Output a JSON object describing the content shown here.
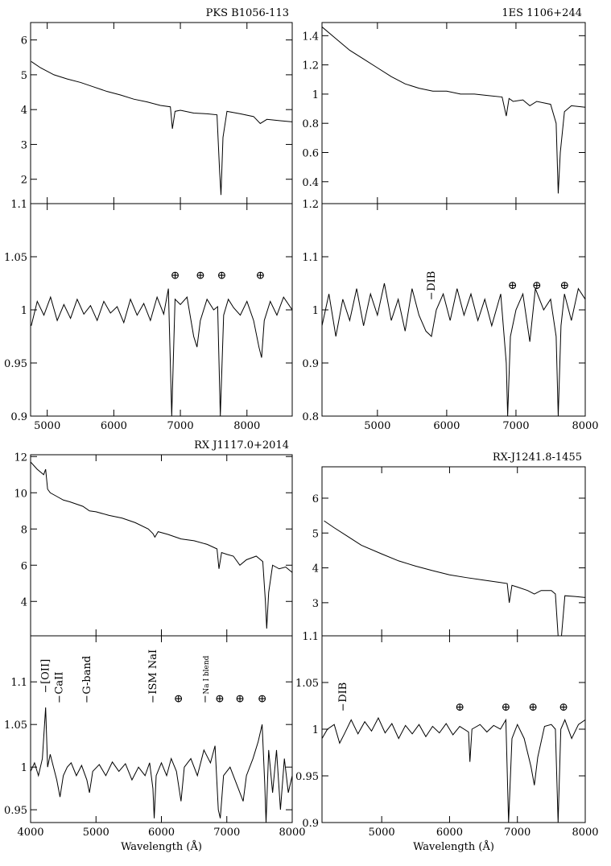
{
  "chart_data": [
    {
      "type": "line",
      "title": "PKS B1056-113",
      "color": "#000000",
      "x": [
        4760,
        4900,
        5100,
        5300,
        5500,
        5700,
        5900,
        6100,
        6300,
        6500,
        6700,
        6850,
        6880,
        6920,
        7000,
        7200,
        7400,
        7550,
        7590,
        7610,
        7640,
        7700,
        7900,
        8100,
        8200,
        8300,
        8500,
        8680
      ],
      "values": [
        5.38,
        5.2,
        5.0,
        4.88,
        4.78,
        4.65,
        4.52,
        4.42,
        4.3,
        4.22,
        4.12,
        4.08,
        3.45,
        3.95,
        3.98,
        3.9,
        3.88,
        3.85,
        2.2,
        1.55,
        3.2,
        3.95,
        3.88,
        3.8,
        3.6,
        3.72,
        3.68,
        3.65
      ],
      "xlim": [
        4750,
        8680
      ],
      "ylim": [
        1.3,
        6.5
      ],
      "xticks": [
        5000,
        6000,
        7000,
        8000
      ],
      "yticks": [
        2,
        3,
        4,
        5,
        6
      ]
    },
    {
      "type": "line",
      "color": "#000000",
      "x": [
        4760,
        4850,
        4950,
        5050,
        5150,
        5250,
        5350,
        5450,
        5550,
        5650,
        5750,
        5850,
        5950,
        6050,
        6150,
        6250,
        6350,
        6450,
        6550,
        6650,
        6750,
        6820,
        6870,
        6920,
        7000,
        7100,
        7200,
        7250,
        7300,
        7400,
        7500,
        7560,
        7600,
        7650,
        7720,
        7800,
        7900,
        8000,
        8100,
        8180,
        8220,
        8260,
        8350,
        8450,
        8550,
        8680
      ],
      "values": [
        0.985,
        1.008,
        0.995,
        1.012,
        0.99,
        1.005,
        0.992,
        1.01,
        0.996,
        1.004,
        0.99,
        1.008,
        0.997,
        1.003,
        0.988,
        1.01,
        0.995,
        1.006,
        0.99,
        1.012,
        0.996,
        1.02,
        0.9,
        1.01,
        1.005,
        1.012,
        0.975,
        0.965,
        0.99,
        1.01,
        1.0,
        1.003,
        0.9,
        0.995,
        1.01,
        1.002,
        0.995,
        1.008,
        0.99,
        0.965,
        0.955,
        0.99,
        1.008,
        0.995,
        1.012,
        1.0
      ],
      "xlim": [
        4750,
        8680
      ],
      "ylim": [
        0.9,
        1.1
      ],
      "xticks": [
        5000,
        6000,
        7000,
        8000
      ],
      "yticks": [
        0.9,
        0.95,
        1,
        1.05,
        1.1
      ],
      "annotations": [
        {
          "text": "⊕",
          "x": 6920,
          "y": 1.033
        },
        {
          "text": "⊕",
          "x": 7300,
          "y": 1.033
        },
        {
          "text": "⊕",
          "x": 7620,
          "y": 1.033
        },
        {
          "text": "⊕",
          "x": 8200,
          "y": 1.033
        }
      ]
    },
    {
      "type": "line",
      "title": "1ES 1106+244",
      "color": "#000000",
      "x": [
        4200,
        4400,
        4600,
        4800,
        5000,
        5200,
        5400,
        5600,
        5800,
        6000,
        6200,
        6400,
        6600,
        6800,
        6860,
        6900,
        6960,
        7100,
        7200,
        7300,
        7500,
        7580,
        7610,
        7640,
        7700,
        7800,
        8000
      ],
      "values": [
        1.46,
        1.38,
        1.3,
        1.24,
        1.18,
        1.12,
        1.07,
        1.04,
        1.02,
        1.02,
        1.0,
        1.0,
        0.99,
        0.98,
        0.85,
        0.97,
        0.95,
        0.96,
        0.92,
        0.95,
        0.93,
        0.8,
        0.32,
        0.6,
        0.88,
        0.92,
        0.91
      ],
      "xlim": [
        4200,
        8000
      ],
      "ylim": [
        0.25,
        1.49
      ],
      "xticks": [
        5000,
        6000,
        7000,
        8000
      ],
      "yticks": [
        0.4,
        0.6,
        0.8,
        1,
        1.2,
        1.4
      ]
    },
    {
      "type": "line",
      "color": "#000000",
      "x": [
        4200,
        4300,
        4400,
        4500,
        4600,
        4700,
        4800,
        4900,
        5000,
        5100,
        5200,
        5300,
        5400,
        5500,
        5600,
        5700,
        5780,
        5850,
        5950,
        6050,
        6150,
        6250,
        6350,
        6450,
        6550,
        6650,
        6780,
        6860,
        6880,
        6920,
        7000,
        7100,
        7200,
        7280,
        7400,
        7500,
        7580,
        7610,
        7650,
        7700,
        7800,
        7900,
        8000
      ],
      "values": [
        0.97,
        1.03,
        0.95,
        1.02,
        0.98,
        1.04,
        0.97,
        1.03,
        0.99,
        1.05,
        0.98,
        1.02,
        0.96,
        1.04,
        0.99,
        0.96,
        0.95,
        1.0,
        1.03,
        0.98,
        1.04,
        0.99,
        1.03,
        0.98,
        1.02,
        0.97,
        1.03,
        0.9,
        0.8,
        0.95,
        1.0,
        1.03,
        0.94,
        1.04,
        1.0,
        1.02,
        0.95,
        0.8,
        0.97,
        1.03,
        0.98,
        1.04,
        1.02
      ],
      "xlim": [
        4200,
        8000
      ],
      "ylim": [
        0.8,
        1.2
      ],
      "xticks": [
        5000,
        6000,
        7000,
        8000
      ],
      "yticks": [
        0.8,
        0.9,
        1,
        1.1,
        1.2
      ],
      "annotations": [
        {
          "text": "DIB",
          "x": 5780,
          "y": 1.02
        },
        {
          "text": "⊕",
          "x": 6950,
          "y": 1.047
        },
        {
          "text": "⊕",
          "x": 7300,
          "y": 1.047
        },
        {
          "text": "⊕",
          "x": 7700,
          "y": 1.047
        }
      ]
    },
    {
      "type": "line",
      "title": "RX J1117.0+2014",
      "color": "#000000",
      "x": [
        4000,
        4100,
        4200,
        4230,
        4260,
        4300,
        4400,
        4500,
        4600,
        4800,
        4900,
        5000,
        5200,
        5400,
        5600,
        5800,
        5870,
        5900,
        5950,
        6100,
        6300,
        6500,
        6700,
        6850,
        6880,
        6920,
        7000,
        7100,
        7200,
        7300,
        7450,
        7550,
        7590,
        7610,
        7640,
        7700,
        7800,
        7900,
        8000
      ],
      "values": [
        11.7,
        11.3,
        11.0,
        11.3,
        10.2,
        10.0,
        9.8,
        9.6,
        9.5,
        9.25,
        9.0,
        8.95,
        8.75,
        8.6,
        8.35,
        8.0,
        7.75,
        7.55,
        7.85,
        7.7,
        7.45,
        7.35,
        7.15,
        6.9,
        5.8,
        6.7,
        6.6,
        6.5,
        6.0,
        6.3,
        6.5,
        6.2,
        4.0,
        2.5,
        4.5,
        6.0,
        5.8,
        5.9,
        5.6
      ],
      "xlim": [
        4000,
        8000
      ],
      "ylim": [
        2.1,
        12.1
      ],
      "xticks": [
        4000,
        5000,
        6000,
        7000,
        8000
      ],
      "yticks": [
        4,
        6,
        8,
        10,
        12
      ]
    },
    {
      "type": "line",
      "color": "#000000",
      "x_label": "Wavelength (Å)",
      "x": [
        4000,
        4060,
        4120,
        4180,
        4230,
        4260,
        4300,
        4350,
        4400,
        4450,
        4500,
        4560,
        4620,
        4700,
        4780,
        4860,
        4900,
        4950,
        5050,
        5150,
        5250,
        5350,
        5450,
        5550,
        5650,
        5750,
        5820,
        5870,
        5890,
        5920,
        6000,
        6080,
        6150,
        6230,
        6300,
        6350,
        6450,
        6550,
        6650,
        6750,
        6820,
        6870,
        6900,
        6950,
        7050,
        7150,
        7250,
        7300,
        7400,
        7480,
        7540,
        7580,
        7600,
        7640,
        7700,
        7760,
        7820,
        7880,
        7940,
        8000
      ],
      "values": [
        0.995,
        1.005,
        0.99,
        1.01,
        1.07,
        1.0,
        1.015,
        1.0,
        0.985,
        0.965,
        0.99,
        1.0,
        1.005,
        0.99,
        1.002,
        0.985,
        0.97,
        0.995,
        1.003,
        0.99,
        1.006,
        0.995,
        1.004,
        0.985,
        1.0,
        0.99,
        1.005,
        0.975,
        0.94,
        0.99,
        1.005,
        0.99,
        1.01,
        0.995,
        0.96,
        1.0,
        1.01,
        0.99,
        1.02,
        1.005,
        1.025,
        0.95,
        0.94,
        0.99,
        1.0,
        0.98,
        0.96,
        0.99,
        1.01,
        1.03,
        1.05,
        0.98,
        0.935,
        1.02,
        0.97,
        1.02,
        0.95,
        1.01,
        0.97,
        0.99
      ],
      "xlim": [
        4000,
        8000
      ],
      "ylim": [
        0.935,
        1.154
      ],
      "xticks": [
        4000,
        5000,
        6000,
        7000,
        8000
      ],
      "yticks": [
        0.95,
        1,
        1.05,
        1.1
      ],
      "annotations": [
        {
          "text": "[OII]",
          "x": 4230,
          "y": 1.088
        },
        {
          "text": "CaII",
          "x": 4440,
          "y": 1.076
        },
        {
          "text": "G-band",
          "x": 4860,
          "y": 1.076
        },
        {
          "text": "ISM NaI",
          "x": 5870,
          "y": 1.076
        },
        {
          "text": "Na I blend",
          "x": 6670,
          "y": 1.076
        },
        {
          "text": "⊕",
          "x": 6260,
          "y": 1.081
        },
        {
          "text": "⊕",
          "x": 6890,
          "y": 1.081
        },
        {
          "text": "⊕",
          "x": 7200,
          "y": 1.081
        },
        {
          "text": "⊕",
          "x": 7540,
          "y": 1.081
        }
      ]
    },
    {
      "type": "line",
      "title": "RX-J1241.8-1455",
      "color": "#000000",
      "x": [
        4150,
        4300,
        4500,
        4700,
        5000,
        5250,
        5500,
        5750,
        6000,
        6250,
        6500,
        6750,
        6850,
        6880,
        6920,
        7000,
        7150,
        7250,
        7350,
        7500,
        7560,
        7600,
        7650,
        7700,
        7850,
        8000
      ],
      "values": [
        5.35,
        5.15,
        4.9,
        4.65,
        4.4,
        4.2,
        4.05,
        3.92,
        3.8,
        3.72,
        3.65,
        3.58,
        3.55,
        3.0,
        3.5,
        3.45,
        3.35,
        3.25,
        3.35,
        3.35,
        3.25,
        2.05,
        2.05,
        3.2,
        3.18,
        3.15
      ],
      "xlim": [
        4120,
        8000
      ],
      "ylim": [
        2.05,
        6.9
      ],
      "xticks": [
        5000,
        6000,
        7000,
        8000
      ],
      "yticks": [
        3,
        4,
        5,
        6
      ]
    },
    {
      "type": "line",
      "color": "#000000",
      "x_label": "Wavelength (Å)",
      "x": [
        4120,
        4200,
        4300,
        4380,
        4450,
        4550,
        4650,
        4750,
        4850,
        4950,
        5050,
        5150,
        5250,
        5350,
        5450,
        5550,
        5650,
        5750,
        5850,
        5950,
        6050,
        6150,
        6280,
        6300,
        6330,
        6450,
        6550,
        6650,
        6750,
        6830,
        6870,
        6920,
        7000,
        7100,
        7200,
        7250,
        7300,
        7400,
        7500,
        7560,
        7600,
        7640,
        7700,
        7800,
        7900,
        8000
      ],
      "values": [
        0.99,
        1.0,
        1.005,
        0.985,
        0.995,
        1.01,
        0.995,
        1.008,
        0.998,
        1.012,
        0.996,
        1.006,
        0.99,
        1.004,
        0.995,
        1.005,
        0.992,
        1.003,
        0.996,
        1.006,
        0.994,
        1.003,
        0.997,
        0.965,
        1.0,
        1.005,
        0.997,
        1.004,
        1.0,
        1.01,
        0.9,
        0.99,
        1.005,
        0.99,
        0.96,
        0.94,
        0.97,
        1.003,
        1.005,
        1.0,
        0.9,
        1.0,
        1.01,
        0.99,
        1.005,
        1.01
      ],
      "xlim": [
        4120,
        8000
      ],
      "ylim": [
        0.9,
        1.1
      ],
      "xticks": [
        5000,
        6000,
        7000,
        8000
      ],
      "yticks": [
        0.9,
        0.95,
        1,
        1.05,
        1.1
      ],
      "annotations": [
        {
          "text": "DIB",
          "x": 4430,
          "y": 1.02
        },
        {
          "text": "⊕",
          "x": 6150,
          "y": 1.024
        },
        {
          "text": "⊕",
          "x": 6830,
          "y": 1.024
        },
        {
          "text": "⊕",
          "x": 7230,
          "y": 1.024
        },
        {
          "text": "⊕",
          "x": 7680,
          "y": 1.024
        }
      ]
    }
  ]
}
